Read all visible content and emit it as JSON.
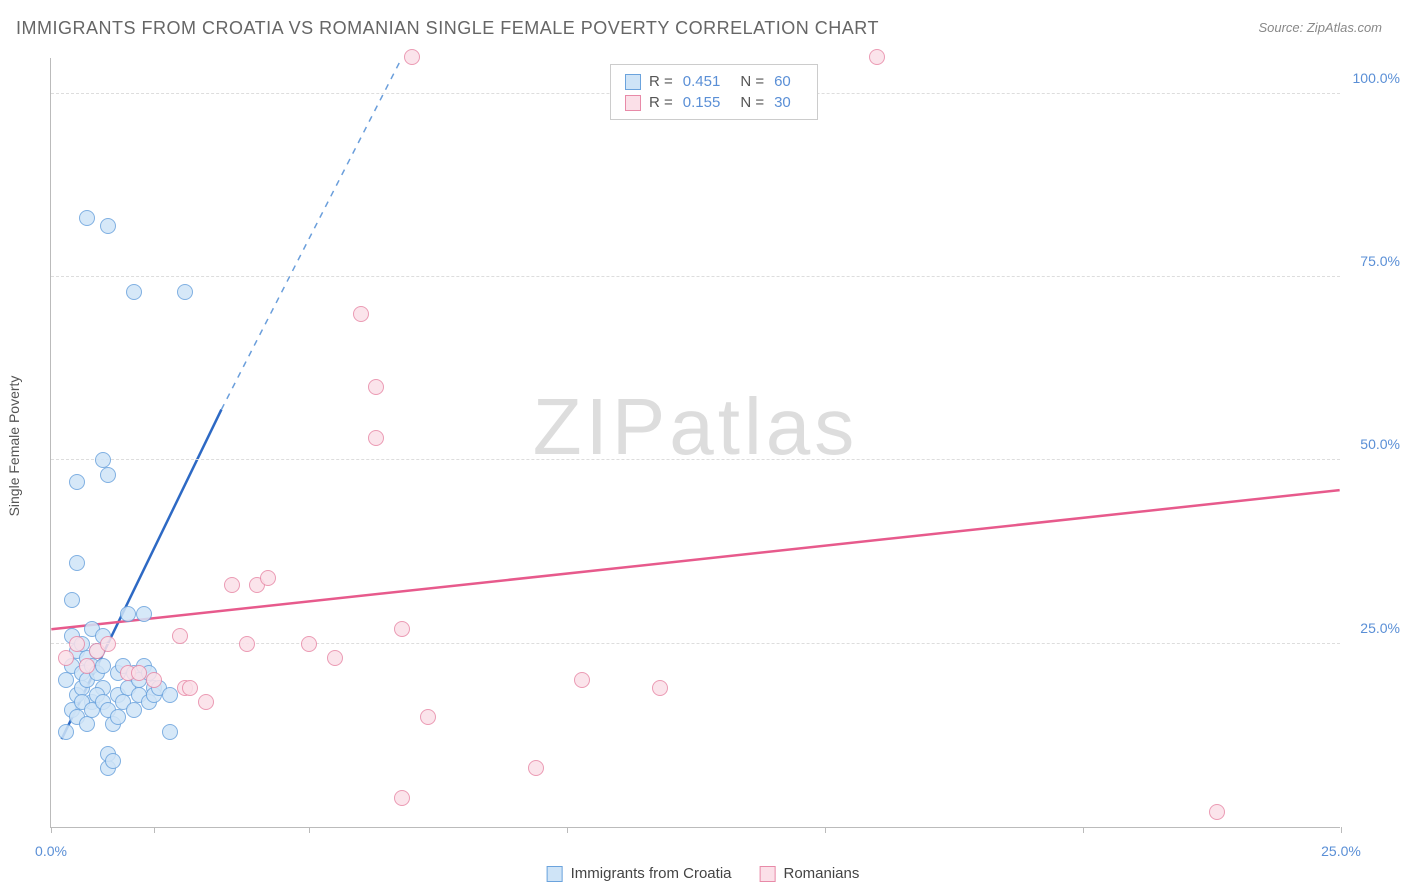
{
  "title": "IMMIGRANTS FROM CROATIA VS ROMANIAN SINGLE FEMALE POVERTY CORRELATION CHART",
  "source_label": "Source: ZipAtlas.com",
  "watermark": "ZIPatlas",
  "y_axis_label": "Single Female Poverty",
  "chart": {
    "type": "scatter",
    "background_color": "#ffffff",
    "grid_color": "#dddddd",
    "axis_color": "#bbbbbb",
    "tick_label_color": "#5a8fd6",
    "xlim": [
      0,
      25
    ],
    "ylim": [
      0,
      105
    ],
    "x_ticks": [
      0,
      2,
      5,
      10,
      15,
      20,
      25
    ],
    "x_tick_labels": {
      "0": "0.0%",
      "25": "25.0%"
    },
    "y_ticks": [
      25,
      50,
      75,
      100
    ],
    "y_tick_labels": {
      "25": "25.0%",
      "50": "50.0%",
      "75": "75.0%",
      "100": "100.0%"
    },
    "marker_radius": 8,
    "marker_stroke_width": 1.5,
    "series": [
      {
        "id": "croatia",
        "label": "Immigrants from Croatia",
        "fill": "#cfe4f7",
        "stroke": "#6ba3dd",
        "R": "0.451",
        "N": "60",
        "trend": {
          "x1": 0.2,
          "y1": 12,
          "x2": 3.3,
          "y2": 57,
          "color": "#2d69c4",
          "width": 2.5
        },
        "trend_ext": {
          "x1": 3.3,
          "y1": 57,
          "x2": 6.8,
          "y2": 105,
          "color": "#6a9edb",
          "dash": "6,6",
          "width": 1.5
        },
        "points": [
          [
            0.3,
            20
          ],
          [
            0.4,
            22
          ],
          [
            0.5,
            18
          ],
          [
            0.5,
            24
          ],
          [
            0.6,
            21
          ],
          [
            0.6,
            19
          ],
          [
            0.7,
            23
          ],
          [
            0.7,
            20
          ],
          [
            0.8,
            22
          ],
          [
            0.8,
            17
          ],
          [
            0.9,
            24
          ],
          [
            0.9,
            21
          ],
          [
            1.0,
            19
          ],
          [
            1.0,
            22
          ],
          [
            1.1,
            8
          ],
          [
            1.1,
            10
          ],
          [
            1.2,
            9
          ],
          [
            1.2,
            14
          ],
          [
            1.3,
            21
          ],
          [
            1.3,
            18
          ],
          [
            1.4,
            22
          ],
          [
            1.5,
            19
          ],
          [
            1.5,
            29
          ],
          [
            1.6,
            21
          ],
          [
            1.7,
            20
          ],
          [
            1.8,
            22
          ],
          [
            1.9,
            21
          ],
          [
            2.0,
            19
          ],
          [
            0.5,
            36
          ],
          [
            1.8,
            29
          ],
          [
            0.4,
            31
          ],
          [
            0.5,
            47
          ],
          [
            1.1,
            48
          ],
          [
            1.0,
            50
          ],
          [
            0.7,
            83
          ],
          [
            1.1,
            82
          ],
          [
            1.6,
            73
          ],
          [
            2.6,
            73
          ],
          [
            0.3,
            13
          ],
          [
            0.4,
            16
          ],
          [
            0.5,
            15
          ],
          [
            0.6,
            17
          ],
          [
            0.7,
            14
          ],
          [
            0.8,
            16
          ],
          [
            0.9,
            18
          ],
          [
            1.0,
            17
          ],
          [
            1.1,
            16
          ],
          [
            1.3,
            15
          ],
          [
            1.4,
            17
          ],
          [
            1.6,
            16
          ],
          [
            1.7,
            18
          ],
          [
            1.9,
            17
          ],
          [
            2.0,
            18
          ],
          [
            2.1,
            19
          ],
          [
            2.3,
            13
          ],
          [
            2.3,
            18
          ],
          [
            0.4,
            26
          ],
          [
            0.6,
            25
          ],
          [
            0.8,
            27
          ],
          [
            1.0,
            26
          ]
        ]
      },
      {
        "id": "romanians",
        "label": "Romanians",
        "fill": "#fbe0e8",
        "stroke": "#e88aa8",
        "R": "0.155",
        "N": "30",
        "trend": {
          "x1": 0,
          "y1": 27,
          "x2": 25,
          "y2": 46,
          "color": "#e75a8c",
          "width": 2.5
        },
        "points": [
          [
            0.3,
            23
          ],
          [
            0.5,
            25
          ],
          [
            0.7,
            22
          ],
          [
            0.9,
            24
          ],
          [
            1.1,
            25
          ],
          [
            1.5,
            21
          ],
          [
            1.7,
            21
          ],
          [
            2.0,
            20
          ],
          [
            2.5,
            26
          ],
          [
            2.6,
            19
          ],
          [
            2.7,
            19
          ],
          [
            3.0,
            17
          ],
          [
            3.5,
            33
          ],
          [
            3.8,
            25
          ],
          [
            4.0,
            33
          ],
          [
            5.0,
            25
          ],
          [
            4.2,
            34
          ],
          [
            5.5,
            23
          ],
          [
            6.3,
            53
          ],
          [
            6.0,
            70
          ],
          [
            6.3,
            60
          ],
          [
            6.8,
            27
          ],
          [
            7.0,
            105
          ],
          [
            7.3,
            15
          ],
          [
            9.4,
            8
          ],
          [
            6.8,
            4
          ],
          [
            10.3,
            20
          ],
          [
            11.8,
            19
          ],
          [
            16.0,
            105
          ],
          [
            22.6,
            2
          ]
        ]
      }
    ]
  },
  "stats_legend": {
    "R_label": "R =",
    "N_label": "N ="
  },
  "bottom_legend": {
    "items": [
      "Immigrants from Croatia",
      "Romanians"
    ]
  }
}
